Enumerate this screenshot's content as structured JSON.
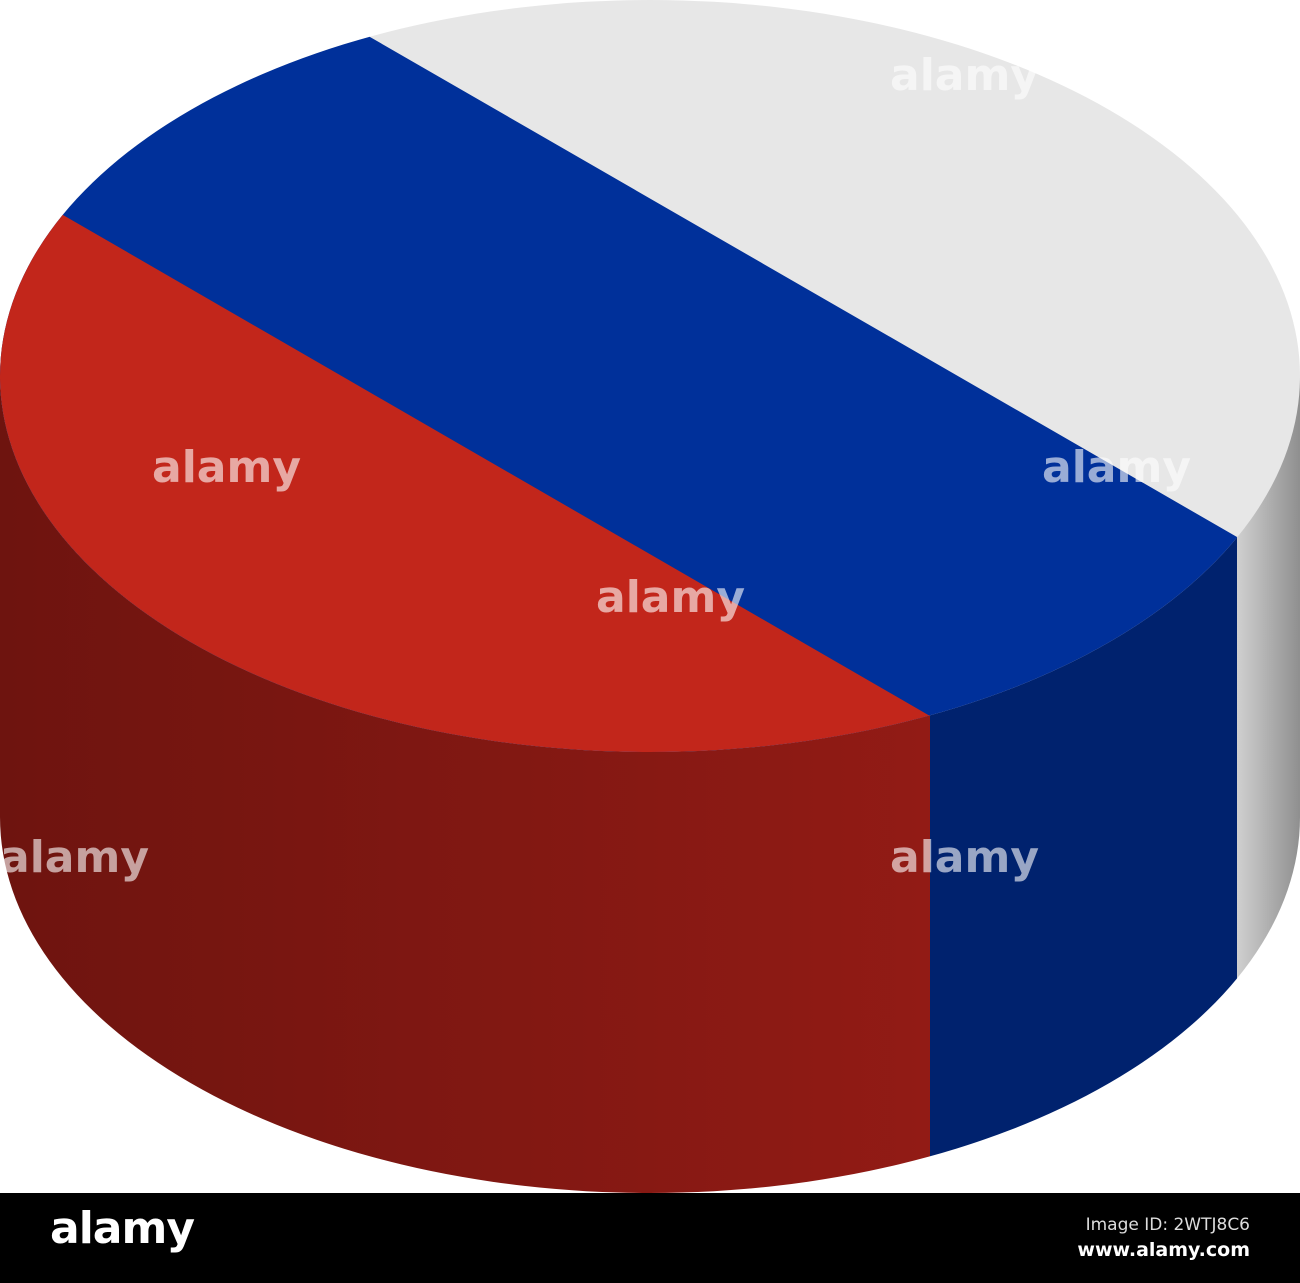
{
  "image": {
    "subject": "Russia flag cylinder",
    "colors": {
      "white_top": "#e7e7e7",
      "blue_top": "#00309a",
      "red_top": "#c2261b",
      "red_side": "#7c1712",
      "blue_side": "#00226e",
      "grey_side": "#a8a8a8"
    }
  },
  "watermark": {
    "small": "a",
    "large": "alamy"
  },
  "footer": {
    "logo": "alamy",
    "image_id": "Image ID: 2WTJ8C6",
    "url": "www.alamy.com"
  }
}
